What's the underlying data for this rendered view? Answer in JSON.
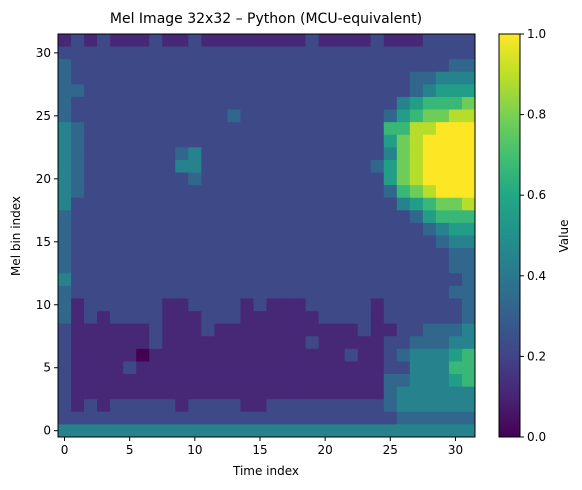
{
  "chart_data": {
    "type": "heatmap",
    "title": "Mel Image 32x32 – Python (MCU-equivalent)",
    "xlabel": "Time index",
    "ylabel": "Mel bin index",
    "x_ticks": [
      0,
      5,
      10,
      15,
      20,
      25,
      30
    ],
    "y_ticks": [
      0,
      5,
      10,
      15,
      20,
      25,
      30
    ],
    "xlim": [
      -0.5,
      31.5
    ],
    "ylim": [
      -0.5,
      31.5
    ],
    "colormap": "viridis",
    "colorbar": {
      "label": "Value",
      "range": [
        0.0,
        1.0
      ],
      "ticks": [
        "0.0",
        "0.2",
        "0.4",
        "0.6",
        "0.8",
        "1.0"
      ]
    },
    "rows_high_to_low": [
      "12121112112111111112111121112222",
      "22222222222222222222222222222222",
      "32222222222222222222222222222233",
      "32222222222222222222222222233444",
      "33222222222222222222222222234555",
      "32222222222222222222222222456667",
      "32222222222223222222222223567788",
      "43222222222222222222222226688999",
      "43222222222222222222222225789999",
      "43222222234222222222222224789999",
      "43222222244222222222222235789999",
      "43222222223222222222222225789999",
      "43222222222222222222222223678999",
      "42222222222222222222222222456778",
      "32222222222222222222222222235666",
      "32222222222222222222222222223455",
      "32222222222222222222222222222344",
      "32222222222222222222222222222233",
      "32222222222222222222222222222233",
      "42222222222222222222222222222223",
      "32222222222222222222222222222233",
      "31222222112222121112222212222223",
      "31212222111222111111222212222223",
      "21111112111211111111111211223334",
      "21111112111111111112111112233344",
      "21111101111111111111112112344456",
      "21111211111111111111111112244466",
      "21111111111111111111111113344456",
      "21111111111111111111111113444444",
      "21212222212222112222222223444444",
      "22222222222222222222222222333333",
      "44444444444444444444444444444444"
    ]
  }
}
